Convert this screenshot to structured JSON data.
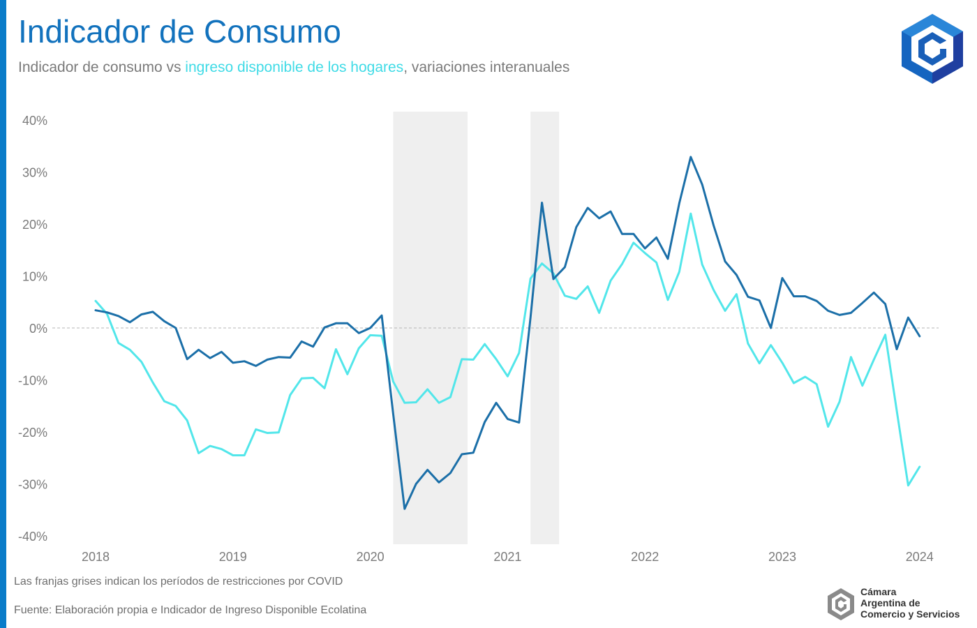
{
  "header": {
    "title": "Indicador de Consumo",
    "subtitle_part1": "Indicador de consumo vs ",
    "subtitle_highlight": "ingreso disponible de los hogares",
    "subtitle_part2": ", variaciones interanuales"
  },
  "footer": {
    "note": "Las franjas grises indican los períodos de restricciones por COVID",
    "source": "Fuente: Elaboración propia e Indicador de Ingreso Disponible Ecolatina",
    "org_line1": "Cámara",
    "org_line2": "Argentina de",
    "org_line3": "Comercio y Servicios"
  },
  "colors": {
    "accent": "#0a7cc9",
    "consumo": "#1b6fa8",
    "ingreso": "#52e6ea",
    "shade": "#efefef"
  },
  "chart_data": {
    "type": "line",
    "ylim": [
      -40,
      40
    ],
    "y_ticks": [
      40,
      30,
      20,
      10,
      0,
      -10,
      -20,
      -30,
      -40
    ],
    "y_tick_labels": [
      "40%",
      "30%",
      "20%",
      "10%",
      "0%",
      "-10%",
      "-20%",
      "-30%",
      "-40%"
    ],
    "x_tick_labels": [
      "2018",
      "2019",
      "2020",
      "2021",
      "2022",
      "2023",
      "2024"
    ],
    "x_start": "2018-01",
    "shaded_periods": [
      [
        "2020-03",
        "2020-09"
      ],
      [
        "2021-03",
        "2021-05"
      ]
    ],
    "zero_line": "dashed",
    "series": [
      {
        "key": "consumo",
        "values": [
          3.4,
          3.0,
          2.3,
          1.1,
          2.6,
          3.1,
          1.3,
          0.0,
          -6.0,
          -4.2,
          -5.8,
          -4.6,
          -6.7,
          -6.4,
          -7.3,
          -6.1,
          -5.6,
          -5.7,
          -2.6,
          -3.6,
          0.1,
          0.9,
          0.9,
          -1.0,
          0.0,
          2.4,
          -16.5,
          -34.8,
          -30.0,
          -27.3,
          -29.7,
          -27.9,
          -24.3,
          -24.0,
          -18.1,
          -14.4,
          -17.5,
          -18.2,
          2.0,
          24.1,
          9.4,
          11.7,
          19.4,
          23.1,
          21.1,
          22.4,
          18.1,
          18.1,
          15.3,
          17.4,
          13.3,
          24.0,
          32.9,
          27.6,
          19.7,
          12.8,
          10.2,
          6.0,
          5.3,
          0.0,
          9.6,
          6.1,
          6.1,
          5.2,
          3.3,
          2.5,
          2.9,
          4.8,
          6.8,
          4.6,
          -4.1,
          2.0,
          -1.6
        ]
      },
      {
        "key": "ingreso",
        "values": [
          5.2,
          2.7,
          -2.9,
          -4.2,
          -6.5,
          -10.5,
          -14.1,
          -15.0,
          -17.8,
          -24.1,
          -22.7,
          -23.3,
          -24.5,
          -24.5,
          -19.5,
          -20.2,
          -20.1,
          -12.9,
          -9.7,
          -9.6,
          -11.6,
          -4.1,
          -8.9,
          -3.9,
          -1.4,
          -1.5,
          -10.3,
          -14.4,
          -14.3,
          -11.8,
          -14.4,
          -13.3,
          -6.0,
          -6.1,
          -3.1,
          -6.0,
          -9.3,
          -4.8,
          9.5,
          12.4,
          10.5,
          6.2,
          5.6,
          8.0,
          2.9,
          9.1,
          12.3,
          16.4,
          14.4,
          12.6,
          5.4,
          10.8,
          22.0,
          12.2,
          7.3,
          3.3,
          6.5,
          -3.0,
          -6.8,
          -3.3,
          -6.7,
          -10.6,
          -9.4,
          -10.8,
          -19.0,
          -14.2,
          -5.6,
          -11.1,
          -6.1,
          -1.3,
          -15.9,
          -30.3,
          -26.7
        ]
      }
    ]
  }
}
